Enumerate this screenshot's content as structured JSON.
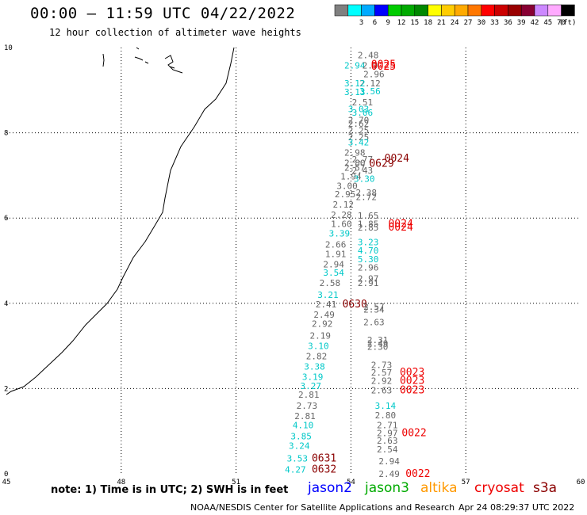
{
  "title": "00:00 — 11:59 UTC 04/22/2022",
  "subtitle": "12 hour collection of altimeter wave heights",
  "colorbar": {
    "unit": "(ft)",
    "bins": [
      {
        "label": "",
        "color": "#808080"
      },
      {
        "label": "3",
        "color": "#00ffff"
      },
      {
        "label": "6",
        "color": "#00aaff"
      },
      {
        "label": "9",
        "color": "#0000ff"
      },
      {
        "label": "12",
        "color": "#00cc00"
      },
      {
        "label": "15",
        "color": "#00aa00"
      },
      {
        "label": "18",
        "color": "#008800"
      },
      {
        "label": "21",
        "color": "#ffff00"
      },
      {
        "label": "24",
        "color": "#ffcc00"
      },
      {
        "label": "27",
        "color": "#ffaa00"
      },
      {
        "label": "30",
        "color": "#ff7700"
      },
      {
        "label": "33",
        "color": "#ff0000"
      },
      {
        "label": "36",
        "color": "#cc0000"
      },
      {
        "label": "39",
        "color": "#990000"
      },
      {
        "label": "42",
        "color": "#880033"
      },
      {
        "label": "45",
        "color": "#cc88ff"
      },
      {
        "label": "70",
        "color": "#ffaaff"
      },
      {
        "label": "",
        "color": "#000000"
      }
    ]
  },
  "axes": {
    "x_ticks": [
      "45",
      "48",
      "51",
      "54",
      "57",
      "60"
    ],
    "y_ticks": [
      "0",
      "2",
      "4",
      "6",
      "8",
      "10"
    ]
  },
  "observations": [
    {
      "lon": 54.45,
      "lat": 9.82,
      "text": "2.48",
      "sat": "other"
    },
    {
      "lon": 54.1,
      "lat": 9.58,
      "text": "2.94",
      "sat": "jason2"
    },
    {
      "lon": 54.5,
      "lat": 9.58,
      "text": "2.9",
      "sat": "other"
    },
    {
      "lon": 54.85,
      "lat": 9.6,
      "text": "0025",
      "sat": "cryosat"
    },
    {
      "lon": 54.85,
      "lat": 9.55,
      "text": "0025",
      "sat": "cryosat"
    },
    {
      "lon": 54.6,
      "lat": 9.38,
      "text": "2.96",
      "sat": "other"
    },
    {
      "lon": 54.5,
      "lat": 9.16,
      "text": "2.12",
      "sat": "other"
    },
    {
      "lon": 54.1,
      "lat": 9.16,
      "text": "3.12",
      "sat": "jason2"
    },
    {
      "lon": 54.1,
      "lat": 8.96,
      "text": "3.13",
      "sat": "jason2"
    },
    {
      "lon": 54.5,
      "lat": 8.98,
      "text": "3.56",
      "sat": "jason2"
    },
    {
      "lon": 54.3,
      "lat": 8.72,
      "text": "2.51",
      "sat": "other"
    },
    {
      "lon": 54.2,
      "lat": 8.56,
      "text": "3.03",
      "sat": "jason2"
    },
    {
      "lon": 54.3,
      "lat": 8.48,
      "text": "3.06",
      "sat": "jason2"
    },
    {
      "lon": 54.2,
      "lat": 8.3,
      "text": "2.70",
      "sat": "other"
    },
    {
      "lon": 54.2,
      "lat": 8.22,
      "text": "2.62",
      "sat": "other"
    },
    {
      "lon": 54.2,
      "lat": 8.06,
      "text": "2.25",
      "sat": "other"
    },
    {
      "lon": 54.2,
      "lat": 7.9,
      "text": "2.25",
      "sat": "other"
    },
    {
      "lon": 54.2,
      "lat": 7.78,
      "text": "3.42",
      "sat": "jason2"
    },
    {
      "lon": 54.1,
      "lat": 7.54,
      "text": "2.98",
      "sat": "other"
    },
    {
      "lon": 54.3,
      "lat": 7.38,
      "text": "2.77",
      "sat": "other"
    },
    {
      "lon": 55.2,
      "lat": 7.4,
      "text": "0024",
      "sat": "s3a"
    },
    {
      "lon": 54.1,
      "lat": 7.3,
      "text": "2.80",
      "sat": "other"
    },
    {
      "lon": 54.8,
      "lat": 7.28,
      "text": "0629",
      "sat": "s3a"
    },
    {
      "lon": 54.1,
      "lat": 7.18,
      "text": "2.57",
      "sat": "other"
    },
    {
      "lon": 54.3,
      "lat": 7.12,
      "text": "2.43",
      "sat": "other"
    },
    {
      "lon": 54.0,
      "lat": 6.98,
      "text": "1.94",
      "sat": "other"
    },
    {
      "lon": 54.35,
      "lat": 6.92,
      "text": "3.30",
      "sat": "jason2"
    },
    {
      "lon": 53.9,
      "lat": 6.76,
      "text": "3.00",
      "sat": "other"
    },
    {
      "lon": 54.4,
      "lat": 6.6,
      "text": "2.38",
      "sat": "other"
    },
    {
      "lon": 53.85,
      "lat": 6.56,
      "text": "2.95",
      "sat": "other"
    },
    {
      "lon": 54.4,
      "lat": 6.5,
      "text": "2.72",
      "sat": "other"
    },
    {
      "lon": 53.8,
      "lat": 6.32,
      "text": "2.12",
      "sat": "other"
    },
    {
      "lon": 53.75,
      "lat": 6.08,
      "text": "2.28",
      "sat": "other"
    },
    {
      "lon": 54.45,
      "lat": 6.06,
      "text": "1.65",
      "sat": "other"
    },
    {
      "lon": 53.75,
      "lat": 5.86,
      "text": "1.60",
      "sat": "other"
    },
    {
      "lon": 54.45,
      "lat": 5.86,
      "text": "1.85",
      "sat": "other"
    },
    {
      "lon": 55.3,
      "lat": 5.86,
      "text": "0024",
      "sat": "cryosat"
    },
    {
      "lon": 54.45,
      "lat": 5.78,
      "text": "2.85",
      "sat": "other"
    },
    {
      "lon": 55.3,
      "lat": 5.78,
      "text": "0024",
      "sat": "cryosat"
    },
    {
      "lon": 53.7,
      "lat": 5.64,
      "text": "3.39",
      "sat": "jason2"
    },
    {
      "lon": 53.6,
      "lat": 5.38,
      "text": "2.66",
      "sat": "other"
    },
    {
      "lon": 54.45,
      "lat": 5.44,
      "text": "3.23",
      "sat": "jason2"
    },
    {
      "lon": 54.45,
      "lat": 5.24,
      "text": "4.70",
      "sat": "jason2"
    },
    {
      "lon": 53.6,
      "lat": 5.16,
      "text": "1.91",
      "sat": "other"
    },
    {
      "lon": 54.45,
      "lat": 5.04,
      "text": "5.30",
      "sat": "jason2"
    },
    {
      "lon": 53.55,
      "lat": 4.92,
      "text": "2.94",
      "sat": "other"
    },
    {
      "lon": 54.45,
      "lat": 4.84,
      "text": "2.96",
      "sat": "other"
    },
    {
      "lon": 53.55,
      "lat": 4.72,
      "text": "3.54",
      "sat": "jason2"
    },
    {
      "lon": 54.45,
      "lat": 4.58,
      "text": "2.97",
      "sat": "other"
    },
    {
      "lon": 53.45,
      "lat": 4.48,
      "text": "2.58",
      "sat": "other"
    },
    {
      "lon": 54.45,
      "lat": 4.48,
      "text": "2.91",
      "sat": "other"
    },
    {
      "lon": 53.4,
      "lat": 4.2,
      "text": "3.21",
      "sat": "jason2"
    },
    {
      "lon": 53.35,
      "lat": 3.98,
      "text": "2.41",
      "sat": "other"
    },
    {
      "lon": 54.1,
      "lat": 3.98,
      "text": "0630",
      "sat": "s3a"
    },
    {
      "lon": 54.6,
      "lat": 3.92,
      "text": "2.57",
      "sat": "other"
    },
    {
      "lon": 54.6,
      "lat": 3.86,
      "text": "2.34",
      "sat": "other"
    },
    {
      "lon": 53.3,
      "lat": 3.74,
      "text": "2.49",
      "sat": "other"
    },
    {
      "lon": 54.6,
      "lat": 3.56,
      "text": "2.63",
      "sat": "other"
    },
    {
      "lon": 53.25,
      "lat": 3.52,
      "text": "2.92",
      "sat": "other"
    },
    {
      "lon": 53.2,
      "lat": 3.24,
      "text": "2.19",
      "sat": "other"
    },
    {
      "lon": 54.7,
      "lat": 3.14,
      "text": "2.31",
      "sat": "other"
    },
    {
      "lon": 54.7,
      "lat": 3.06,
      "text": "2.49",
      "sat": "other"
    },
    {
      "lon": 53.15,
      "lat": 3.0,
      "text": "3.10",
      "sat": "jason2"
    },
    {
      "lon": 54.7,
      "lat": 2.98,
      "text": "2.30",
      "sat": "other"
    },
    {
      "lon": 53.1,
      "lat": 2.76,
      "text": "2.82",
      "sat": "other"
    },
    {
      "lon": 54.8,
      "lat": 2.56,
      "text": "2.73",
      "sat": "other"
    },
    {
      "lon": 53.05,
      "lat": 2.52,
      "text": "3.38",
      "sat": "jason2"
    },
    {
      "lon": 54.8,
      "lat": 2.38,
      "text": "2.57",
      "sat": "other"
    },
    {
      "lon": 55.6,
      "lat": 2.38,
      "text": "0023",
      "sat": "cryosat"
    },
    {
      "lon": 53.0,
      "lat": 2.28,
      "text": "3.19",
      "sat": "jason2"
    },
    {
      "lon": 54.8,
      "lat": 2.18,
      "text": "2.92",
      "sat": "other"
    },
    {
      "lon": 55.6,
      "lat": 2.18,
      "text": "0023",
      "sat": "cryosat"
    },
    {
      "lon": 52.95,
      "lat": 2.06,
      "text": "3.27",
      "sat": "jason2"
    },
    {
      "lon": 54.8,
      "lat": 1.96,
      "text": "2.63",
      "sat": "other"
    },
    {
      "lon": 55.6,
      "lat": 1.96,
      "text": "0023",
      "sat": "cryosat"
    },
    {
      "lon": 52.9,
      "lat": 1.86,
      "text": "2.81",
      "sat": "other"
    },
    {
      "lon": 52.85,
      "lat": 1.6,
      "text": "2.73",
      "sat": "other"
    },
    {
      "lon": 54.9,
      "lat": 1.6,
      "text": "3.14",
      "sat": "jason2"
    },
    {
      "lon": 52.8,
      "lat": 1.36,
      "text": "2.81",
      "sat": "other"
    },
    {
      "lon": 54.9,
      "lat": 1.38,
      "text": "2.80",
      "sat": "other"
    },
    {
      "lon": 52.75,
      "lat": 1.14,
      "text": "4.10",
      "sat": "jason2"
    },
    {
      "lon": 54.95,
      "lat": 1.14,
      "text": "2.71",
      "sat": "other"
    },
    {
      "lon": 54.95,
      "lat": 0.96,
      "text": "2.97",
      "sat": "other"
    },
    {
      "lon": 55.65,
      "lat": 0.96,
      "text": "0022",
      "sat": "cryosat"
    },
    {
      "lon": 52.7,
      "lat": 0.88,
      "text": "3.85",
      "sat": "jason2"
    },
    {
      "lon": 54.95,
      "lat": 0.78,
      "text": "2.63",
      "sat": "other"
    },
    {
      "lon": 52.65,
      "lat": 0.66,
      "text": "3.24",
      "sat": "jason2"
    },
    {
      "lon": 54.95,
      "lat": 0.58,
      "text": "2.54",
      "sat": "other"
    },
    {
      "lon": 52.6,
      "lat": 0.36,
      "text": "3.53",
      "sat": "jason2"
    },
    {
      "lon": 53.3,
      "lat": 0.36,
      "text": "0631",
      "sat": "s3a"
    },
    {
      "lon": 55.0,
      "lat": 0.3,
      "text": "2.94",
      "sat": "other"
    },
    {
      "lon": 52.55,
      "lat": 0.1,
      "text": "4.27",
      "sat": "jason2"
    },
    {
      "lon": 53.3,
      "lat": 0.1,
      "text": "0632",
      "sat": "s3a"
    },
    {
      "lon": 55.0,
      "lat": 0.0,
      "text": "2.49",
      "sat": "other"
    },
    {
      "lon": 55.75,
      "lat": 0.0,
      "text": "0022",
      "sat": "cryosat"
    }
  ],
  "sat_colors": {
    "other": "#666666",
    "jason2": "#00c8c8",
    "cryosat": "#ee0000",
    "s3a": "#8b0000"
  },
  "note": "note: 1) Time is in UTC; 2) SWH is in feet",
  "legend": {
    "jason2": {
      "label": "jason2",
      "color": "#0000ff"
    },
    "jason3": {
      "label": "jason3",
      "color": "#00aa00"
    },
    "altika": {
      "label": "altika",
      "color": "#ff9900"
    },
    "cryosat": {
      "label": "cryosat",
      "color": "#ee0000"
    },
    "s3a": {
      "label": "s3a",
      "color": "#8b0000"
    }
  },
  "credit": "NOAA/NESDIS Center for Satellite Applications and Research",
  "stamp": "Apr 24 08:29:37 UTC 2022"
}
